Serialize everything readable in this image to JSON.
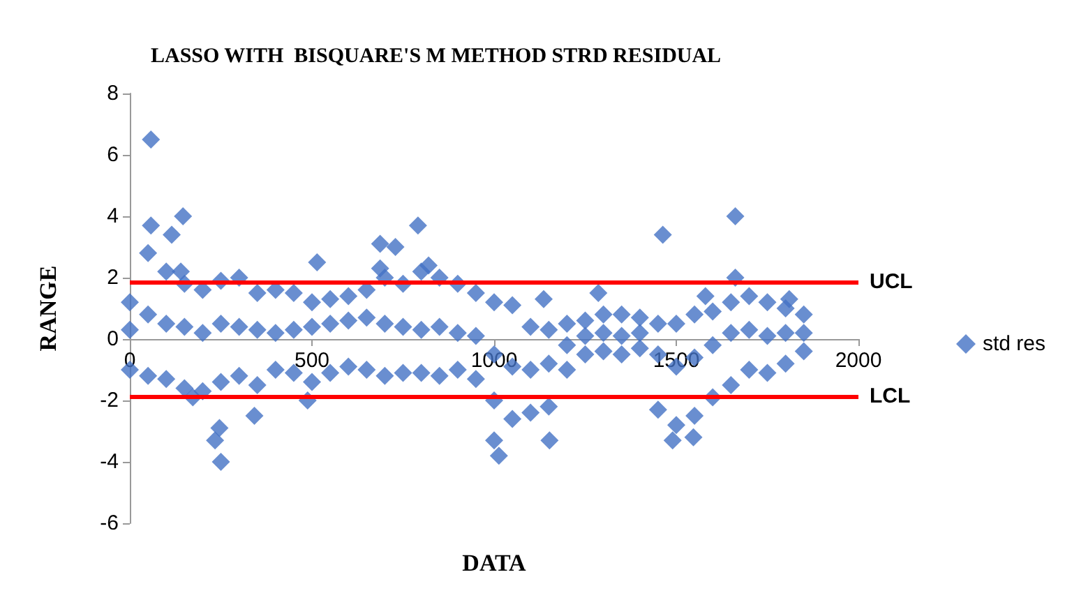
{
  "chart_data": {
    "type": "scatter",
    "title": "LASSO WITH  BISQUARE'S M METHOD STRD RESIDUAL",
    "xlabel": "DATA",
    "ylabel": "RANGE",
    "xlim": [
      0,
      2000
    ],
    "xticks": [
      0,
      500,
      1000,
      1500,
      2000
    ],
    "ylim": [
      -6,
      8
    ],
    "yticks": [
      -6,
      -4,
      -2,
      0,
      2,
      4,
      6,
      8
    ],
    "grid": false,
    "legend": "right",
    "marker": "diamond",
    "series": [
      {
        "name": "std res",
        "color": "#4472c4",
        "x": [
          0,
          50,
          100,
          150,
          200,
          250,
          300,
          350,
          400,
          450,
          500,
          550,
          600,
          650,
          700,
          750,
          800,
          850,
          900,
          950,
          1000,
          1050,
          1100,
          1150,
          1200,
          1250,
          1300,
          1350,
          1400,
          1450,
          1500,
          1550,
          1600,
          1650,
          1700,
          1750,
          1800,
          1850,
          0,
          50,
          100,
          150,
          200,
          250,
          300,
          350,
          400,
          450,
          500,
          550,
          600,
          650,
          700,
          750,
          800,
          850,
          900,
          950,
          1000,
          1050,
          1100,
          1150,
          1200,
          1250,
          1300,
          1350,
          1400,
          1450,
          1500,
          1550,
          1600,
          1650,
          1700,
          1750,
          1800,
          1850,
          0,
          50,
          100,
          150,
          200,
          250,
          300,
          350,
          400,
          450,
          500,
          550,
          600,
          650,
          700,
          750,
          800,
          850,
          900,
          950,
          1000,
          1050,
          1100,
          1150,
          1200,
          1250,
          1300,
          1350,
          1400,
          1450,
          1500,
          1550,
          1600,
          1650,
          1700,
          1750,
          1800,
          1850,
          58,
          58,
          115,
          146,
          140,
          173,
          234,
          246,
          250,
          342,
          488,
          514,
          687,
          687,
          729,
          791,
          820,
          1013,
          1000,
          1152,
          1136,
          1286,
          1463,
          1662,
          1662,
          1490,
          1547,
          1580,
          1810
        ],
        "values": [
          1.2,
          2.8,
          2.2,
          1.8,
          1.6,
          1.9,
          2.0,
          1.5,
          1.6,
          1.5,
          1.2,
          1.3,
          1.4,
          1.6,
          2.0,
          1.8,
          2.2,
          2.0,
          1.8,
          1.5,
          1.2,
          1.1,
          0.4,
          0.3,
          0.5,
          0.6,
          0.8,
          0.8,
          0.7,
          0.5,
          0.5,
          0.8,
          0.9,
          1.2,
          1.4,
          1.2,
          1.0,
          0.8,
          -1.0,
          -1.2,
          -1.3,
          -1.6,
          -1.7,
          -1.4,
          -1.2,
          -1.5,
          -1.0,
          -1.1,
          -1.4,
          -1.1,
          -0.9,
          -1.0,
          -1.2,
          -1.1,
          -1.1,
          -1.2,
          -1.0,
          -1.3,
          -2.0,
          -2.6,
          -2.4,
          -2.2,
          -1.0,
          -0.5,
          -0.4,
          -0.5,
          -0.3,
          -2.3,
          -2.8,
          -2.5,
          -1.9,
          -1.5,
          -1.0,
          -1.1,
          -0.8,
          -0.4,
          0.3,
          0.8,
          0.5,
          0.4,
          0.2,
          0.5,
          0.4,
          0.3,
          0.2,
          0.3,
          0.4,
          0.5,
          0.6,
          0.7,
          0.5,
          0.4,
          0.3,
          0.4,
          0.2,
          0.1,
          -0.5,
          -0.9,
          -1.0,
          -0.8,
          -0.2,
          0.1,
          0.2,
          0.1,
          0.2,
          -0.5,
          -0.9,
          -0.6,
          -0.2,
          0.2,
          0.3,
          0.1,
          0.2,
          0.2,
          6.5,
          3.7,
          3.4,
          4.0,
          2.2,
          -1.9,
          -3.3,
          -2.9,
          -4.0,
          -2.5,
          -2.0,
          2.5,
          3.1,
          2.3,
          3.0,
          3.7,
          2.4,
          -3.8,
          -3.3,
          -3.3,
          1.3,
          1.5,
          3.4,
          4.0,
          2.0,
          -3.3,
          -3.2,
          1.4,
          1.3
        ]
      }
    ],
    "ref_lines": [
      {
        "axis": "y",
        "value": 1.86,
        "label": "UCL",
        "color": "#ff0000"
      },
      {
        "axis": "y",
        "value": -1.86,
        "label": "LCL",
        "color": "#ff0000"
      }
    ]
  }
}
